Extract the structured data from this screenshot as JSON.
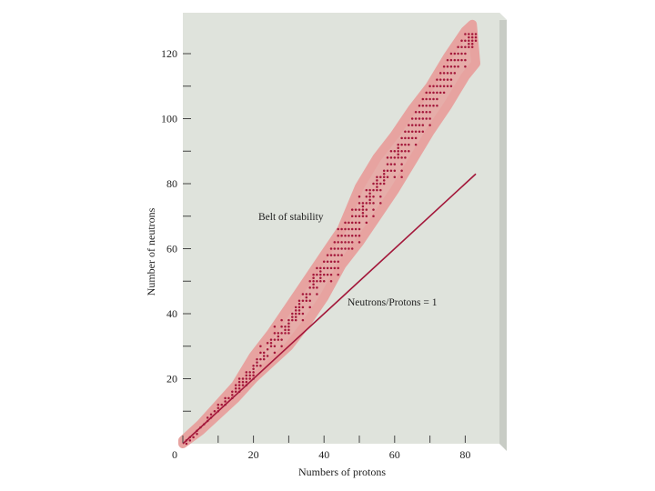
{
  "colors": {
    "panel": "#dfe3dc",
    "panel_edge": "#c8ccc5",
    "band": "#e7a3a0",
    "points": "#a3173a",
    "line": "#a3173a",
    "axis": "#444444"
  },
  "chart_data": {
    "type": "scatter",
    "title": "",
    "xlabel": "Numbers of protons",
    "ylabel": "Number of neutrons",
    "xlim": [
      0,
      85
    ],
    "ylim": [
      0,
      130
    ],
    "xticks": [
      0,
      20,
      40,
      60,
      80
    ],
    "yticks": [
      20,
      40,
      60,
      80,
      100,
      120
    ],
    "annotations": {
      "band_label": "Belt of stability",
      "line_label": "Neutrons/Protons = 1"
    },
    "reference_line": {
      "x": [
        0,
        83
      ],
      "y": [
        0,
        83
      ]
    },
    "belt_of_stability": {
      "upper": [
        [
          0,
          1
        ],
        [
          5,
          6
        ],
        [
          10,
          12
        ],
        [
          15,
          18
        ],
        [
          20,
          27
        ],
        [
          25,
          34
        ],
        [
          30,
          42
        ],
        [
          35,
          50
        ],
        [
          40,
          58
        ],
        [
          45,
          66
        ],
        [
          50,
          79
        ],
        [
          55,
          88
        ],
        [
          60,
          95
        ],
        [
          65,
          103
        ],
        [
          70,
          110
        ],
        [
          75,
          119
        ],
        [
          80,
          127
        ],
        [
          82,
          129
        ]
      ],
      "lower": [
        [
          0,
          0
        ],
        [
          5,
          4
        ],
        [
          10,
          9
        ],
        [
          15,
          14
        ],
        [
          20,
          20
        ],
        [
          25,
          25
        ],
        [
          30,
          30
        ],
        [
          35,
          37
        ],
        [
          40,
          45
        ],
        [
          45,
          55
        ],
        [
          50,
          62
        ],
        [
          55,
          70
        ],
        [
          60,
          78
        ],
        [
          65,
          87
        ],
        [
          70,
          96
        ],
        [
          75,
          104
        ],
        [
          80,
          113
        ],
        [
          83,
          117
        ]
      ]
    },
    "stable_band_series": {
      "x": [
        1,
        2,
        3,
        4,
        5,
        6,
        7,
        8,
        9,
        10,
        11,
        12,
        13,
        14,
        15,
        16,
        17,
        18,
        19,
        20,
        21,
        22,
        23,
        24,
        25,
        26,
        27,
        28,
        29,
        30,
        31,
        32,
        33,
        34,
        35,
        36,
        37,
        38,
        39,
        40,
        41,
        42,
        43,
        44,
        45,
        46,
        47,
        48,
        49,
        50,
        51,
        52,
        53,
        54,
        55,
        56,
        57,
        58,
        59,
        60,
        61,
        62,
        63,
        64,
        65,
        66,
        67,
        68,
        69,
        70,
        71,
        72,
        73,
        74,
        75,
        76,
        77,
        78,
        79,
        80,
        81,
        82,
        83
      ],
      "n_min": [
        0,
        1,
        2,
        3,
        5,
        6,
        7,
        8,
        10,
        10,
        12,
        12,
        14,
        14,
        16,
        16,
        18,
        18,
        20,
        20,
        24,
        24,
        26,
        27,
        30,
        28,
        32,
        30,
        34,
        34,
        38,
        38,
        40,
        38,
        44,
        42,
        48,
        46,
        50,
        50,
        52,
        50,
        54,
        52,
        58,
        60,
        60,
        60,
        64,
        62,
        70,
        68,
        74,
        70,
        78,
        74,
        80,
        82,
        84,
        82,
        88,
        82,
        88,
        90,
        94,
        92,
        96,
        96,
        100,
        98,
        104,
        104,
        108,
        108,
        110,
        110,
        114,
        116,
        118,
        116,
        122,
        122,
        124
      ],
      "n_max": [
        1,
        2,
        2,
        4,
        5,
        6,
        8,
        9,
        10,
        12,
        12,
        14,
        14,
        16,
        18,
        20,
        20,
        22,
        22,
        24,
        26,
        30,
        28,
        32,
        32,
        36,
        34,
        38,
        36,
        38,
        40,
        42,
        44,
        46,
        46,
        50,
        52,
        54,
        54,
        56,
        58,
        60,
        62,
        66,
        66,
        68,
        68,
        72,
        72,
        76,
        74,
        78,
        78,
        80,
        82,
        82,
        84,
        88,
        90,
        90,
        92,
        94,
        96,
        98,
        100,
        102,
        104,
        106,
        108,
        110,
        110,
        112,
        114,
        116,
        118,
        120,
        120,
        122,
        124,
        126,
        126,
        126,
        126
      ]
    }
  }
}
